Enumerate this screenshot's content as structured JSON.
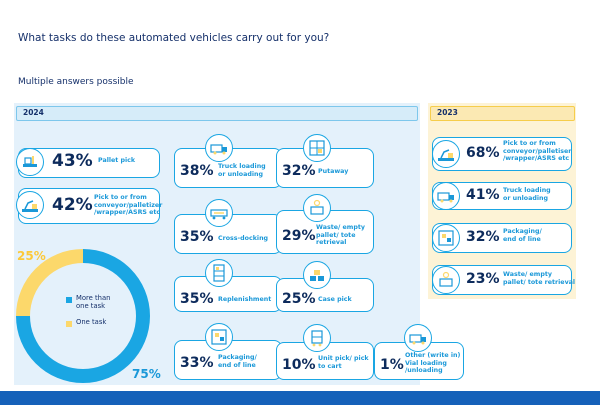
{
  "question": "What tasks do these automated vehicles carry out for you?",
  "note": "Multiple answers possible",
  "colors": {
    "blue": "#1aa6e3",
    "yellow": "#fcd86b",
    "navy": "#0d2b5c",
    "panel2024": "#e4f1fb",
    "panel2023": "#fdf3d6"
  },
  "chart_data": {
    "type": "table",
    "title": "What tasks do these automated vehicles carry out for you?",
    "subtitle": "Multiple answers possible",
    "years": {
      "y2024": {
        "label": "2024",
        "items": [
          {
            "value": "43%",
            "label": "Pallet pick",
            "icon": "pallet-pick-icon"
          },
          {
            "value": "42%",
            "label": "Pick to or from\nconveyor/palletizer\n/wrapper/ASRS etc",
            "icon": "robot-arm-icon"
          },
          {
            "value": "38%",
            "label": "Truck loading\nor unloading",
            "icon": "truck-icon"
          },
          {
            "value": "35%",
            "label": "Cross-docking",
            "icon": "cross-dock-icon"
          },
          {
            "value": "35%",
            "label": "Replenishment",
            "icon": "shelf-icon"
          },
          {
            "value": "33%",
            "label": "Packaging/\nend of line",
            "icon": "packaging-icon"
          },
          {
            "value": "32%",
            "label": "Putaway",
            "icon": "putaway-icon"
          },
          {
            "value": "29%",
            "label": "Waste/ empty\npallet/ tote\nretrieval",
            "icon": "waste-icon"
          },
          {
            "value": "25%",
            "label": "Case pick",
            "icon": "case-pick-icon"
          },
          {
            "value": "10%",
            "label": "Unit pick/ pick\nto cart",
            "icon": "cart-icon"
          },
          {
            "value": "1%",
            "label": "Other (write in)\nVial loading\n/unloading",
            "icon": "truck-icon"
          }
        ]
      },
      "y2023": {
        "label": "2023",
        "items": [
          {
            "value": "68%",
            "label": "Pick to or from\nconveyor/palletiser\n/wrapper/ASRS etc",
            "icon": "robot-arm-icon"
          },
          {
            "value": "41%",
            "label": "Truck loading\nor unloading",
            "icon": "truck-icon"
          },
          {
            "value": "32%",
            "label": "Packaging/\nend of line",
            "icon": "packaging-icon"
          },
          {
            "value": "23%",
            "label": "Waste/ empty\npallet/ tote retrieval",
            "icon": "waste-icon"
          }
        ]
      }
    },
    "donut": {
      "type": "pie",
      "slices": [
        {
          "name": "More than\none task",
          "value": 75,
          "label": "75%",
          "color": "#1aa6e3"
        },
        {
          "name": "One task",
          "value": 25,
          "label": "25%",
          "color": "#fcd86b"
        }
      ]
    }
  }
}
